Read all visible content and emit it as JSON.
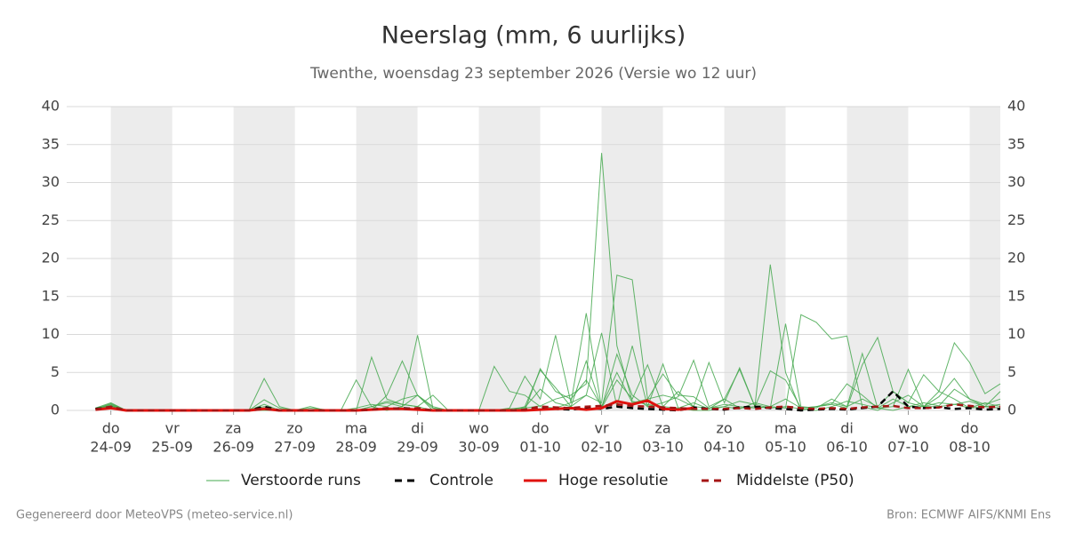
{
  "chart_data": {
    "type": "line",
    "title": "Neerslag (mm, 6 uurlijks)",
    "subtitle": "Twenthe, woensdag 23 september 2026 (Versie wo 12 uur)",
    "footer_left": "Gegenereerd door MeteoVPS (meteo-service.nl)",
    "footer_right": "Bron: ECMWF AIFS/KNMI Ens",
    "x": [
      -0.25,
      0,
      0.25,
      0.5,
      0.75,
      1,
      1.25,
      1.5,
      1.75,
      2,
      2.25,
      2.5,
      2.75,
      3,
      3.25,
      3.5,
      3.75,
      4,
      4.25,
      4.5,
      4.75,
      5,
      5.25,
      5.5,
      5.75,
      6,
      6.25,
      6.5,
      6.75,
      7,
      7.25,
      7.5,
      7.75,
      8,
      8.25,
      8.5,
      8.75,
      9,
      9.25,
      9.5,
      9.75,
      10,
      10.25,
      10.5,
      10.75,
      11,
      11.25,
      11.5,
      11.75,
      12,
      12.25,
      12.5,
      12.75,
      13,
      13.25,
      13.5,
      13.75,
      14,
      14.25,
      14.5
    ],
    "xlim": [
      -0.72,
      14.5
    ],
    "xticks": [
      {
        "value": 0,
        "label": "24-09"
      },
      {
        "value": 1,
        "label": "25-09"
      },
      {
        "value": 2,
        "label": "26-09"
      },
      {
        "value": 3,
        "label": "27-09"
      },
      {
        "value": 4,
        "label": "28-09"
      },
      {
        "value": 5,
        "label": "29-09"
      },
      {
        "value": 6,
        "label": "30-09"
      },
      {
        "value": 7,
        "label": "01-10"
      },
      {
        "value": 8,
        "label": "02-10"
      },
      {
        "value": 9,
        "label": "03-10"
      },
      {
        "value": 10,
        "label": "04-10"
      },
      {
        "value": 11,
        "label": "05-10"
      },
      {
        "value": 12,
        "label": "06-10"
      },
      {
        "value": 13,
        "label": "07-10"
      },
      {
        "value": 14,
        "label": "08-10"
      }
    ],
    "xtick_days": [
      "do",
      "vr",
      "za",
      "zo",
      "ma",
      "di",
      "wo",
      "do",
      "vr",
      "za",
      "zo",
      "ma",
      "di",
      "wo",
      "do"
    ],
    "ylim": [
      0,
      40
    ],
    "yticks": [
      0,
      5,
      10,
      15,
      20,
      25,
      30,
      35,
      40
    ],
    "grid": true,
    "series": [
      {
        "name": "Verstoorde runs",
        "color": "#45a84f",
        "members": [
          [
            0.2,
            0.8,
            0,
            0,
            0,
            0,
            0,
            0,
            0,
            0,
            0,
            0.3,
            0,
            0,
            0,
            0,
            0,
            0,
            0.5,
            1.2,
            0.8,
            0.5,
            0,
            0,
            0,
            0,
            0,
            0,
            0.3,
            0.6,
            1.5,
            2,
            3.5,
            33.9,
            8.5,
            1.2,
            0.8,
            0.5,
            0.3,
            0,
            0,
            0.5,
            1.2,
            0.8,
            0.3,
            0.5,
            0.2,
            0,
            0.5,
            1.2,
            0.8,
            0.3,
            0,
            0.5,
            1,
            0.6,
            2.8,
            1.5,
            0.5,
            0.3
          ],
          [
            0.1,
            0.6,
            0,
            0,
            0,
            0,
            0,
            0,
            0,
            0,
            0,
            4.2,
            0.5,
            0,
            0.3,
            0.1,
            0,
            0,
            0,
            2,
            6.5,
            2,
            0,
            0,
            0,
            0,
            0,
            0.2,
            0.4,
            2.8,
            1,
            0.5,
            2,
            1,
            17.8,
            17.2,
            1.5,
            4.8,
            2,
            1.8,
            0.3,
            0.5,
            0.2,
            1,
            0.5,
            0.3,
            12.6,
            11.6,
            9.4,
            9.8,
            0.5,
            0,
            1,
            2,
            0.5,
            0.5,
            0.8,
            1.2,
            0.5,
            2.5
          ],
          [
            0.3,
            1,
            0,
            0,
            0,
            0,
            0,
            0,
            0,
            0,
            0,
            0,
            0,
            0,
            0.5,
            0,
            0,
            4,
            0.5,
            0,
            0.5,
            9.9,
            0.3,
            0,
            0,
            0,
            5.8,
            2.5,
            2,
            0.5,
            0.3,
            1,
            2,
            10.2,
            0.5,
            8.5,
            0.5,
            6.1,
            0.3,
            1,
            0.2,
            1.5,
            0.3,
            0.5,
            19.2,
            5,
            0,
            0.5,
            0.8,
            3.5,
            2,
            0.3,
            1.5,
            0.5,
            0.5,
            2.5,
            1.5,
            0.3,
            1,
            0.5
          ],
          [
            0.2,
            0.7,
            0,
            0,
            0,
            0,
            0,
            0,
            0,
            0,
            0,
            1.4,
            0.3,
            0,
            0,
            0,
            0,
            0,
            7,
            1.5,
            0.8,
            0.5,
            2,
            0,
            0,
            0,
            0,
            0.3,
            4.5,
            1.5,
            9.9,
            1,
            12.8,
            0.3,
            7.4,
            2,
            0.5,
            1,
            1.8,
            6.6,
            0.5,
            1.5,
            5.4,
            0.5,
            0.3,
            11.4,
            0.5,
            0.3,
            1.5,
            0.5,
            7.5,
            0.3,
            0.5,
            5.4,
            0.5,
            1,
            0.8,
            0.3,
            0.5,
            0.8
          ],
          [
            0.2,
            0.9,
            0,
            0,
            0,
            0,
            0,
            0,
            0,
            0,
            0,
            0.5,
            0,
            0,
            0,
            0,
            0,
            0.3,
            0.8,
            0.5,
            1.5,
            2,
            0.5,
            0,
            0,
            0,
            0,
            0,
            0.5,
            5.3,
            3,
            0.5,
            6.5,
            0.3,
            4,
            1.5,
            6,
            0.5,
            2.5,
            0.5,
            6.3,
            1,
            5.6,
            0.5,
            5.2,
            4,
            0.3,
            0.5,
            0.8,
            0.3,
            6,
            9.6,
            2.5,
            1,
            4.7,
            2.5,
            8.9,
            6.3,
            2.2,
            3.5
          ],
          [
            0.3,
            0.6,
            0,
            0,
            0,
            0,
            0,
            0,
            0,
            0,
            0,
            0.8,
            0,
            0,
            0,
            0,
            0,
            0,
            0.5,
            1,
            0.5,
            2,
            0.3,
            0,
            0,
            0,
            0,
            0,
            0,
            5.5,
            2.5,
            1.5,
            4,
            0.5,
            5,
            1,
            1.5,
            2,
            1.5,
            0.5,
            0.3,
            0.8,
            0.5,
            0.3,
            0.5,
            1.5,
            0.3,
            0.5,
            1,
            0.5,
            1.5,
            0.5,
            2.5,
            1,
            0.5,
            1.8,
            4.2,
            1.5,
            0.8,
            1.5
          ]
        ]
      },
      {
        "name": "Controle",
        "color": "#000000",
        "dashed": true,
        "values": [
          0.2,
          0.4,
          0,
          0,
          0,
          0,
          0,
          0,
          0,
          0,
          0,
          0.5,
          0,
          0,
          0,
          0,
          0,
          0,
          0.1,
          0.2,
          0.3,
          0.2,
          0,
          0,
          0,
          0,
          0,
          0,
          0,
          0.3,
          0.2,
          0.1,
          0.3,
          0.2,
          0.5,
          0.3,
          0.2,
          0.1,
          0,
          0.4,
          0.2,
          0.1,
          0.4,
          0.5,
          0.3,
          0.2,
          0,
          0.1,
          0.2,
          0.1,
          0.3,
          0.5,
          2.5,
          0.5,
          0.3,
          0.4,
          0.2,
          0.3,
          0.1,
          0.2
        ]
      },
      {
        "name": "Hoge resolutie",
        "color": "#e0120e",
        "dashed": false,
        "values": [
          0.1,
          0.3,
          0,
          0,
          0,
          0,
          0,
          0,
          0,
          0,
          0,
          0.2,
          0,
          0,
          0,
          0,
          0,
          0,
          0.1,
          0.2,
          0.2,
          0.1,
          0,
          0,
          0,
          0,
          0,
          0,
          0,
          0.1,
          0.2,
          0.3,
          0.1,
          0.3,
          1.2,
          0.8,
          1.3,
          0.2,
          0.1,
          0.3,
          null,
          null,
          null,
          null,
          null,
          null,
          null,
          null,
          null,
          null,
          null,
          null,
          null,
          null,
          null,
          null,
          null,
          null,
          null,
          null
        ]
      },
      {
        "name": "Middelste (P50)",
        "color": "#a51515",
        "dashed": true,
        "values": [
          0.1,
          0.5,
          0,
          0,
          0,
          0,
          0,
          0,
          0,
          0,
          0,
          0.2,
          0,
          0,
          0,
          0,
          0,
          0,
          0.1,
          0.3,
          0.2,
          0.3,
          0,
          0,
          0,
          0,
          0,
          0,
          0.1,
          0.5,
          0.4,
          0.3,
          0.5,
          0.6,
          0.8,
          0.6,
          0.5,
          0.4,
          0.3,
          0.2,
          0.2,
          0.2,
          0.3,
          0.2,
          0.4,
          0.5,
          0.3,
          0.2,
          0.3,
          0.2,
          0.4,
          0.5,
          0.6,
          0.3,
          0.3,
          0.4,
          0.8,
          0.6,
          0.4,
          0.5
        ]
      }
    ]
  }
}
